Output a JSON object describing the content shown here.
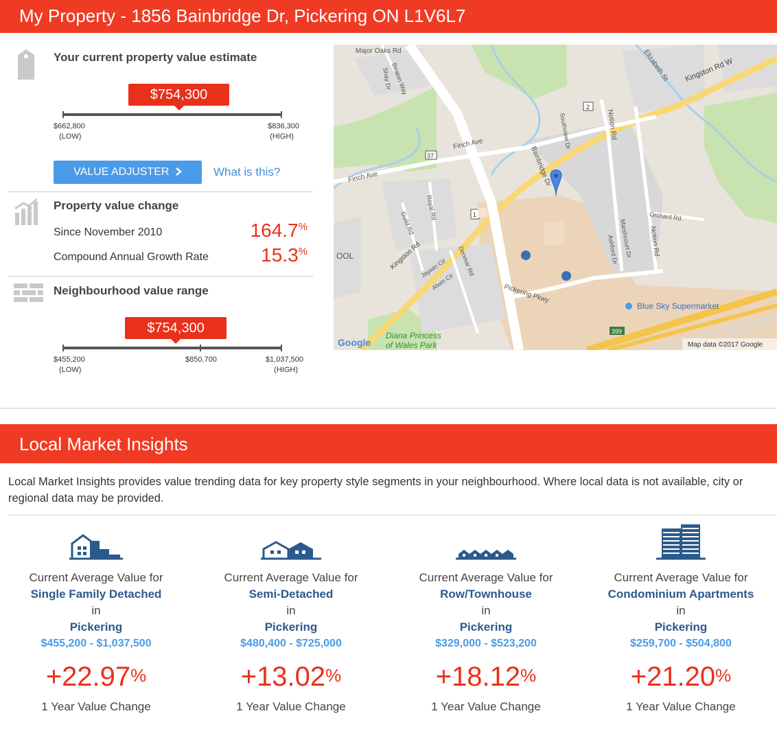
{
  "header": {
    "title": "My Property - 1856 Bainbridge Dr, Pickering ON L1V6L7"
  },
  "estimate": {
    "title": "Your current property value estimate",
    "value": "$754,300",
    "low_value": "$662,800",
    "low_label": "(LOW)",
    "high_value": "$836,300",
    "high_label": "(HIGH)",
    "adjuster_label": "VALUE ADJUSTER",
    "what_is_this": "What is this?"
  },
  "value_change": {
    "title": "Property value change",
    "rows": [
      {
        "label": "Since November 2010",
        "value": "164.7",
        "unit": "%"
      },
      {
        "label": "Compound Annual Growth Rate",
        "value": "15.3",
        "unit": "%"
      }
    ]
  },
  "neighbourhood": {
    "title": "Neighbourhood value range",
    "value": "$754,300",
    "low_value": "$455,200",
    "low_label": "(LOW)",
    "mid_value": "$850,700",
    "high_value": "$1,037,500",
    "high_label": "(HIGH)"
  },
  "map": {
    "labels": {
      "major_oaks": "Major Oaks Rd",
      "beaton": "Beaton Way",
      "shay": "Shay Dr",
      "elizabeth": "Elizabeth St",
      "kingston_w": "Kingston Rd W",
      "finch1": "Finch Ave",
      "finch2": "Finch Ave",
      "southview": "Southview Dr",
      "notion1": "Notion Rd",
      "notion2": "Notion Rd",
      "bainbridge": "Bainbridge Dr",
      "orchard": "Orchard Rd",
      "guild": "Guild Rd",
      "royal": "Royal Rd",
      "kingston": "Kingston Rd",
      "marshcourt": "Marshcourt Dr",
      "ashford": "Ashford Dr",
      "denmar": "Denmar Rd",
      "jaywin": "Jaywin Cir",
      "alwin": "Alwin Cir",
      "pickering_pkwy": "Pickering Pkwy",
      "blue_sky": "Blue Sky Supermarket",
      "ool": "OOL",
      "diana1": "Diana Princess",
      "diana2": "of Wales Park",
      "google": "Google",
      "map_data": "Map data ©2017 Google",
      "shield_2": "2",
      "shield_37": "37",
      "shield_1": "1",
      "shield_399": "399"
    }
  },
  "insights": {
    "title": "Local Market Insights",
    "intro": "Local Market Insights provides value trending data for key property style segments in your neighbourhood. Where local data is not available, city or regional data may be provided.",
    "columns": [
      {
        "icon": "single-family-house-icon",
        "caption": "Current Average Value for",
        "segment": "Single Family Detached",
        "in": "in",
        "city": "Pickering",
        "range": "$455,200 - $1,037,500",
        "change": "+22.97",
        "unit": "%",
        "change_label": "1 Year Value Change"
      },
      {
        "icon": "semi-detached-house-icon",
        "caption": "Current Average Value for",
        "segment": "Semi-Detached",
        "in": "in",
        "city": "Pickering",
        "range": "$480,400 - $725,000",
        "change": "+13.02",
        "unit": "%",
        "change_label": "1 Year Value Change"
      },
      {
        "icon": "townhouse-icon",
        "caption": "Current Average Value for",
        "segment": "Row/Townhouse",
        "in": "in",
        "city": "Pickering",
        "range": "$329,000 - $523,200",
        "change": "+18.12",
        "unit": "%",
        "change_label": "1 Year Value Change"
      },
      {
        "icon": "condo-building-icon",
        "caption": "Current Average Value for",
        "segment": "Condominium Apartments",
        "in": "in",
        "city": "Pickering",
        "range": "$259,700 - $504,800",
        "change": "+21.20",
        "unit": "%",
        "change_label": "1 Year Value Change"
      }
    ]
  }
}
